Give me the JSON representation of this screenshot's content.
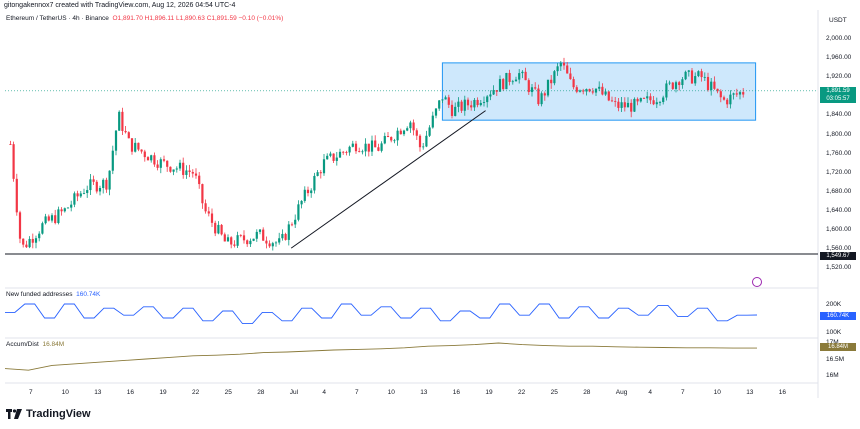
{
  "header": {
    "text": "gitongakennox7 created with TradingView.com, Aug 12, 2026 04:54 UTC-4"
  },
  "symbol": {
    "title": "Ethereum / TetherUS · 4h · Binance",
    "ohlc": "O1,891.70  H1,896.11  L1,890.63  C1,891.59  −0.10 (−0.01%)"
  },
  "currency": "USDT",
  "price_axis": [
    "2,000.00",
    "1,960.00",
    "1,920.00",
    "1,880.00",
    "1,840.00",
    "1,800.00",
    "1,760.00",
    "1,720.00",
    "1,680.00",
    "1,640.00",
    "1,600.00",
    "1,560.00",
    "1,520.00"
  ],
  "last_price": {
    "value": "1,891.59",
    "countdown": "03:05:57"
  },
  "support_price": "1,549.67",
  "time_axis": [
    "7",
    "10",
    "13",
    "16",
    "19",
    "22",
    "25",
    "28",
    "Jul",
    "4",
    "7",
    "10",
    "13",
    "16",
    "19",
    "22",
    "25",
    "28",
    "Aug",
    "4",
    "7",
    "10",
    "13",
    "16"
  ],
  "indicators": {
    "new_funded": {
      "name": "New funded addresses",
      "value": "160.74K",
      "axis": [
        "200K",
        "100K"
      ],
      "tag": "160.74K"
    },
    "accum_dist": {
      "name": "Accum/Dist",
      "value": "16.84M",
      "axis": [
        "17M",
        "16.5M",
        "16M"
      ],
      "tag": "16.84M"
    }
  },
  "brand": {
    "name": "TradingView"
  },
  "colors": {
    "up": "#089981",
    "down": "#f23645",
    "range_box": "#2196f3",
    "indicator_line": "#2962ff",
    "ad_line": "#8a7a3a"
  },
  "chart_data": [
    {
      "type": "candlestick",
      "title": "Ethereum / TetherUS · 4h · Binance",
      "x_ticks": [
        "7",
        "10",
        "13",
        "16",
        "19",
        "22",
        "25",
        "28",
        "Jul",
        "4",
        "7",
        "10",
        "13",
        "16",
        "19",
        "22",
        "25",
        "28",
        "Aug",
        "4",
        "7",
        "10",
        "13",
        "16"
      ],
      "y_range": [
        1500,
        2020
      ],
      "close_path": [
        {
          "x": "Jun 5",
          "y": 1780
        },
        {
          "x": "Jun 6",
          "y": 1560
        },
        {
          "x": "Jun 8",
          "y": 1610
        },
        {
          "x": "Jun 10",
          "y": 1640
        },
        {
          "x": "Jun 12",
          "y": 1690
        },
        {
          "x": "Jun 14",
          "y": 1700
        },
        {
          "x": "Jun 15",
          "y": 1840
        },
        {
          "x": "Jun 16",
          "y": 1780
        },
        {
          "x": "Jun 19",
          "y": 1740
        },
        {
          "x": "Jun 22",
          "y": 1720
        },
        {
          "x": "Jun 23",
          "y": 1640
        },
        {
          "x": "Jun 25",
          "y": 1570
        },
        {
          "x": "Jun 28",
          "y": 1590
        },
        {
          "x": "Jun 30",
          "y": 1570
        },
        {
          "x": "Jul 2",
          "y": 1660
        },
        {
          "x": "Jul 4",
          "y": 1740
        },
        {
          "x": "Jul 7",
          "y": 1780
        },
        {
          "x": "Jul 9",
          "y": 1770
        },
        {
          "x": "Jul 12",
          "y": 1830
        },
        {
          "x": "Jul 13",
          "y": 1770
        },
        {
          "x": "Jul 15",
          "y": 1880
        },
        {
          "x": "Jul 16",
          "y": 1850
        },
        {
          "x": "Jul 18",
          "y": 1870
        },
        {
          "x": "Jul 20",
          "y": 1900
        },
        {
          "x": "Jul 22",
          "y": 1930
        },
        {
          "x": "Jul 24",
          "y": 1870
        },
        {
          "x": "Jul 26",
          "y": 1950
        },
        {
          "x": "Jul 27",
          "y": 1900
        },
        {
          "x": "Jul 29",
          "y": 1900
        },
        {
          "x": "Jul 31",
          "y": 1860
        },
        {
          "x": "Aug 2",
          "y": 1860
        },
        {
          "x": "Aug 4",
          "y": 1880
        },
        {
          "x": "Aug 6",
          "y": 1920
        },
        {
          "x": "Aug 8",
          "y": 1920
        },
        {
          "x": "Aug 10",
          "y": 1870
        },
        {
          "x": "Aug 12",
          "y": 1891.59
        }
      ],
      "support_line": 1549.67,
      "range_box": {
        "from": "Jul 15",
        "to": "Aug 13",
        "low": 1830,
        "high": 1950
      },
      "trendline": [
        {
          "x": "Jul 1",
          "y": 1562
        },
        {
          "x": "Jul 19",
          "y": 1850
        }
      ]
    },
    {
      "type": "line",
      "name": "New funded addresses",
      "last": "160.74K",
      "y_ticks": [
        "200K",
        "100K"
      ],
      "values": [
        170,
        170,
        200,
        200,
        150,
        150,
        200,
        200,
        150,
        150,
        185,
        185,
        160,
        160,
        190,
        190,
        150,
        150,
        185,
        185,
        140,
        140,
        175,
        175,
        130,
        130,
        170,
        170,
        140,
        140,
        185,
        185,
        150,
        150,
        200,
        200,
        160,
        160,
        190,
        190,
        150,
        150,
        185,
        185,
        140,
        140,
        175,
        175,
        150,
        150,
        200,
        200,
        160,
        160,
        200,
        200,
        150,
        150,
        190,
        190,
        150,
        150,
        185,
        185,
        160,
        160,
        195,
        195,
        155,
        155,
        185,
        185,
        140,
        140,
        160,
        160,
        160.74
      ]
    },
    {
      "type": "line",
      "name": "Accum/Dist",
      "last": "16.84M",
      "y_ticks": [
        "17M",
        "16.5M",
        "16M"
      ],
      "values": [
        16.2,
        16.15,
        16.3,
        16.35,
        16.4,
        16.45,
        16.5,
        16.55,
        16.6,
        16.62,
        16.65,
        16.7,
        16.72,
        16.75,
        16.78,
        16.8,
        16.82,
        16.85,
        16.9,
        16.92,
        16.95,
        17.0,
        16.95,
        16.92,
        16.9,
        16.9,
        16.88,
        16.87,
        16.86,
        16.85,
        16.85,
        16.84,
        16.84
      ]
    }
  ]
}
